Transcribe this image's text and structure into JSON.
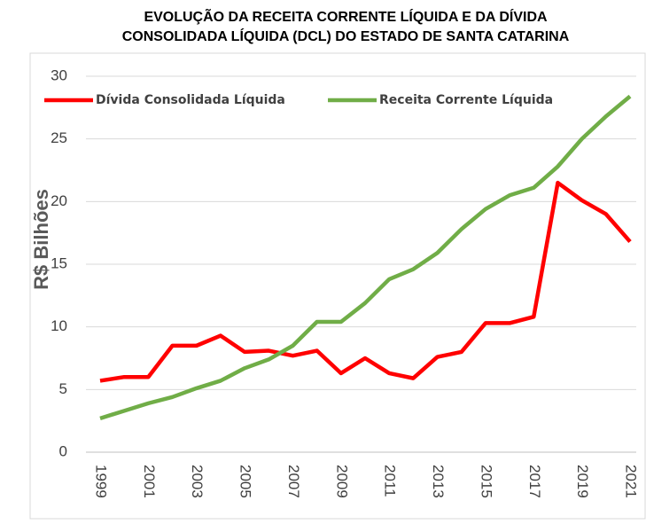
{
  "chart_data": {
    "type": "line",
    "title": [
      "EVOLUÇÃO DA RECEITA CORRENTE LÍQUIDA E DA DÍVIDA",
      "CONSOLIDADA LÍQUIDA (DCL) DO ESTADO DE SANTA CATARINA"
    ],
    "y_label": "R$ Bilhões",
    "categories": [
      "1999",
      null,
      "2001",
      null,
      "2003",
      null,
      "2005",
      null,
      "2007",
      null,
      "2009",
      null,
      "2011",
      null,
      "2013",
      null,
      "2015",
      null,
      "2017",
      null,
      "2019",
      null,
      "2021"
    ],
    "series": [
      {
        "name": "Dívida Consolidada Líquida",
        "color": "#ff0000",
        "values": [
          5.7,
          6.0,
          6.0,
          8.5,
          8.5,
          9.3,
          8.0,
          8.1,
          7.7,
          8.1,
          6.3,
          7.5,
          6.3,
          5.9,
          7.6,
          8.0,
          10.3,
          10.3,
          10.8,
          21.5,
          20.1,
          19.0,
          16.8
        ]
      },
      {
        "name": "Receita Corrente Líquida",
        "color": "#70ad47",
        "values": [
          2.7,
          3.3,
          3.9,
          4.4,
          5.1,
          5.7,
          6.7,
          7.4,
          8.5,
          10.4,
          10.4,
          11.9,
          13.8,
          14.6,
          15.9,
          17.8,
          19.4,
          20.5,
          21.1,
          22.8,
          25.0,
          26.8,
          28.4
        ]
      }
    ],
    "ylim": [
      0,
      30
    ],
    "yticks": [
      0,
      5,
      10,
      15,
      20,
      25,
      30
    ],
    "grid": true,
    "legend": "top-left"
  }
}
